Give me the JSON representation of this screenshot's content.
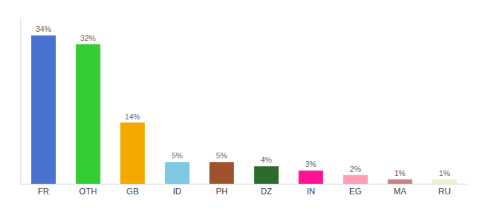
{
  "chart_data": {
    "type": "bar",
    "categories": [
      "FR",
      "OTH",
      "GB",
      "ID",
      "PH",
      "DZ",
      "IN",
      "EG",
      "MA",
      "RU"
    ],
    "values": [
      34,
      32,
      14,
      5,
      5,
      4,
      3,
      2,
      1,
      1
    ],
    "value_labels": [
      "34%",
      "32%",
      "14%",
      "5%",
      "5%",
      "4%",
      "3%",
      "2%",
      "1%",
      "1%"
    ],
    "colors": [
      "#4a72d1",
      "#33cc33",
      "#f5a800",
      "#7ec8e3",
      "#a0522d",
      "#2d6a2d",
      "#ff1493",
      "#ff9eb5",
      "#cd8080",
      "#f0f0d0"
    ],
    "ylim": [
      0,
      38.08
    ],
    "grid": false,
    "data_labels": true,
    "tick_labels": "x"
  }
}
